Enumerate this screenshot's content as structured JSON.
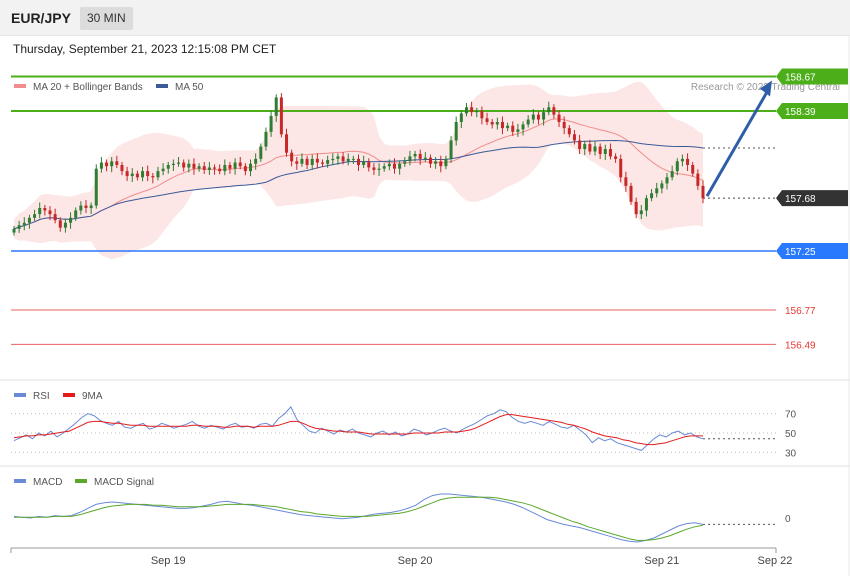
{
  "header": {
    "symbol": "EUR/JPY",
    "timeframe": "30 MIN",
    "datetime": "Thursday, September 21, 2023 12:15:08 PM CET"
  },
  "legend": {
    "ma20": "MA 20 + Bollinger Bands",
    "ma50": "MA 50",
    "copyright": "Research © 2023 Trading Central",
    "rsi": "RSI",
    "rsi_ma": "9MA",
    "macd": "MACD",
    "macd_signal": "MACD Signal"
  },
  "colors": {
    "candle_up": "#2e7d32",
    "candle_down": "#c62828",
    "resistance": "#4caf1a",
    "support": "#2979ff",
    "support2": "#e53935",
    "ma20": "#f28b8b",
    "ma50": "#3a5a98",
    "band_fill": "#fde3e3",
    "last_price": "#333333",
    "arrow": "#2f5ea8",
    "rsi": "#6a8ad8",
    "rsi_ma": "#e31b1b",
    "macd": "#6a8ad8",
    "macd_signal": "#5aa82a"
  },
  "chart_data": {
    "type": "candlestick",
    "ylim": [
      156.2,
      159.0
    ],
    "x_ticks": [
      {
        "label": "Sep 19",
        "index": 30
      },
      {
        "label": "Sep 20",
        "index": 78
      },
      {
        "label": "Sep 21",
        "index": 126
      },
      {
        "label": "Sep 22",
        "index": 148
      }
    ],
    "levels": [
      {
        "value": 158.67,
        "label": "158.67",
        "kind": "resistance"
      },
      {
        "value": 158.39,
        "label": "158.39",
        "kind": "resistance"
      },
      {
        "value": 157.68,
        "label": "157.68",
        "kind": "last"
      },
      {
        "value": 157.25,
        "label": "157.25",
        "kind": "support"
      },
      {
        "value": 156.77,
        "label": "156.77",
        "kind": "support2"
      },
      {
        "value": 156.49,
        "label": "156.49",
        "kind": "support2"
      }
    ],
    "arrow_target": 158.67,
    "close": [
      157.43,
      157.46,
      157.48,
      157.52,
      157.55,
      157.6,
      157.58,
      157.55,
      157.5,
      157.44,
      157.48,
      157.52,
      157.58,
      157.62,
      157.6,
      157.62,
      157.92,
      157.97,
      157.94,
      157.98,
      157.95,
      157.9,
      157.86,
      157.88,
      157.85,
      157.9,
      157.86,
      157.85,
      157.9,
      157.92,
      157.95,
      157.96,
      157.97,
      157.93,
      157.96,
      157.92,
      157.94,
      157.91,
      157.93,
      157.92,
      157.9,
      157.95,
      157.92,
      157.97,
      157.94,
      157.9,
      157.96,
      158.0,
      158.1,
      158.22,
      158.35,
      158.5,
      158.2,
      158.05,
      157.98,
      157.96,
      158.0,
      157.95,
      158.0,
      157.97,
      157.96,
      157.99,
      158.0,
      158.02,
      157.98,
      158.0,
      158.0,
      157.95,
      157.98,
      157.93,
      157.91,
      157.92,
      157.94,
      157.96,
      157.92,
      157.96,
      157.98,
      158.02,
      158.04,
      158.0,
      158.01,
      157.96,
      157.98,
      157.94,
      158.0,
      158.15,
      158.3,
      158.37,
      158.42,
      158.38,
      158.39,
      158.33,
      158.3,
      158.28,
      158.3,
      158.25,
      158.27,
      158.22,
      158.24,
      158.28,
      158.32,
      158.36,
      158.32,
      158.38,
      158.42,
      158.36,
      158.3,
      158.25,
      158.2,
      158.15,
      158.08,
      158.12,
      158.06,
      158.1,
      158.04,
      158.08,
      158.02,
      158.0,
      157.85,
      157.78,
      157.65,
      157.55,
      157.58,
      157.68,
      157.72,
      157.76,
      157.8,
      157.85,
      157.9,
      157.98,
      158.0,
      157.95,
      157.88,
      157.78,
      157.68
    ],
    "rsi_ylim": [
      20,
      80
    ],
    "rsi_ticks": [
      70,
      50,
      30
    ],
    "rsi": [
      42,
      45,
      48,
      44,
      50,
      47,
      52,
      46,
      50,
      55,
      60,
      66,
      70,
      68,
      63,
      60,
      58,
      62,
      56,
      55,
      58,
      60,
      54,
      56,
      60,
      58,
      55,
      57,
      59,
      62,
      57,
      55,
      58,
      56,
      54,
      58,
      60,
      56,
      57,
      55,
      59,
      60,
      57,
      65,
      70,
      77,
      64,
      58,
      52,
      50,
      55,
      52,
      49,
      53,
      51,
      54,
      50,
      48,
      46,
      50,
      52,
      48,
      51,
      47,
      49,
      54,
      52,
      48,
      50,
      53,
      55,
      52,
      50,
      54,
      57,
      60,
      64,
      68,
      70,
      74,
      72,
      66,
      62,
      60,
      62,
      60,
      58,
      62,
      59,
      56,
      55,
      58,
      53,
      48,
      40,
      45,
      42,
      44,
      40,
      38,
      36,
      34,
      32,
      38,
      44,
      48,
      46,
      50,
      52,
      48,
      50,
      46,
      44
    ],
    "rsi_ma": [
      45,
      46,
      47,
      47,
      48,
      48,
      49,
      50,
      51,
      52,
      55,
      58,
      61,
      62,
      62,
      61,
      60,
      60,
      59,
      58,
      58,
      58,
      57,
      57,
      57,
      57,
      57,
      57,
      57,
      58,
      58,
      57,
      57,
      57,
      56,
      56,
      57,
      57,
      57,
      56,
      57,
      57,
      57,
      58,
      60,
      62,
      62,
      60,
      57,
      55,
      54,
      53,
      52,
      52,
      51,
      51,
      51,
      50,
      49,
      49,
      49,
      49,
      49,
      49,
      49,
      50,
      50,
      50,
      50,
      50,
      51,
      51,
      51,
      52,
      53,
      55,
      58,
      61,
      64,
      67,
      69,
      69,
      68,
      67,
      66,
      65,
      64,
      63,
      62,
      61,
      59,
      58,
      56,
      54,
      51,
      49,
      47,
      46,
      45,
      43,
      42,
      40,
      39,
      38,
      38,
      39,
      40,
      42,
      44,
      46,
      47,
      47,
      47
    ],
    "macd_ylim": [
      -0.35,
      0.35
    ],
    "macd_ticks": [
      0
    ],
    "macd": [
      0.02,
      0.01,
      0.0,
      0.02,
      0.01,
      0.03,
      0.02,
      0.03,
      0.07,
      0.12,
      0.17,
      0.19,
      0.2,
      0.19,
      0.18,
      0.17,
      0.16,
      0.15,
      0.14,
      0.13,
      0.12,
      0.12,
      0.13,
      0.15,
      0.17,
      0.2,
      0.21,
      0.19,
      0.17,
      0.16,
      0.14,
      0.12,
      0.1,
      0.08,
      0.06,
      0.04,
      0.03,
      0.02,
      0.01,
      0.0,
      -0.01,
      0.0,
      0.01,
      0.03,
      0.05,
      0.06,
      0.07,
      0.09,
      0.12,
      0.16,
      0.23,
      0.28,
      0.3,
      0.3,
      0.29,
      0.28,
      0.27,
      0.26,
      0.24,
      0.22,
      0.2,
      0.17,
      0.13,
      0.08,
      0.03,
      -0.02,
      -0.05,
      -0.08,
      -0.1,
      -0.12,
      -0.15,
      -0.18,
      -0.21,
      -0.24,
      -0.27,
      -0.29,
      -0.3,
      -0.28,
      -0.25,
      -0.2,
      -0.15,
      -0.1,
      -0.07,
      -0.06,
      -0.08
    ],
    "macd_signal": [
      0.01,
      0.01,
      0.01,
      0.01,
      0.01,
      0.02,
      0.02,
      0.02,
      0.04,
      0.07,
      0.1,
      0.13,
      0.15,
      0.16,
      0.17,
      0.17,
      0.17,
      0.16,
      0.16,
      0.15,
      0.14,
      0.14,
      0.14,
      0.14,
      0.15,
      0.16,
      0.17,
      0.17,
      0.17,
      0.17,
      0.16,
      0.15,
      0.14,
      0.12,
      0.1,
      0.08,
      0.07,
      0.05,
      0.04,
      0.03,
      0.02,
      0.02,
      0.02,
      0.02,
      0.03,
      0.04,
      0.05,
      0.06,
      0.08,
      0.11,
      0.15,
      0.19,
      0.23,
      0.25,
      0.26,
      0.26,
      0.26,
      0.26,
      0.26,
      0.25,
      0.23,
      0.21,
      0.19,
      0.16,
      0.12,
      0.08,
      0.04,
      0.0,
      -0.04,
      -0.07,
      -0.11,
      -0.14,
      -0.17,
      -0.2,
      -0.23,
      -0.26,
      -0.28,
      -0.28,
      -0.27,
      -0.25,
      -0.22,
      -0.18,
      -0.14,
      -0.11,
      -0.09
    ]
  }
}
